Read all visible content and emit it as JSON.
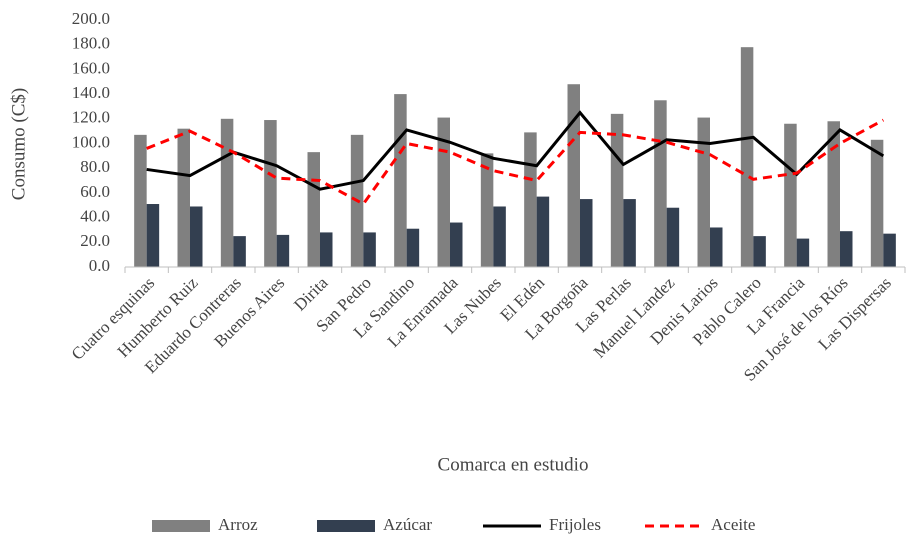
{
  "chart_data": {
    "type": "bar_line",
    "y_axis_label": "Consumo (C$)",
    "x_axis_label": "Comarca en estudio",
    "categories": [
      "Cuatro esquinas",
      "Humberto Ruiz",
      "Eduardo Contreras",
      "Buenos Aires",
      "Dirita",
      "San Pedro",
      "La Sandino",
      "La Enramada",
      "Las Nubes",
      "El Edén",
      "La Borgoña",
      "Las Perlas",
      "Manuel Landez",
      "Denis Larios",
      "Pablo Calero",
      "La Francia",
      "San José de los Ríos",
      "Las Dispersas"
    ],
    "series": [
      {
        "name": "Arroz",
        "kind": "bar",
        "color": "#808080",
        "values": [
          107,
          112,
          120,
          119,
          93,
          107,
          140,
          121,
          92,
          109,
          148,
          124,
          135,
          121,
          178,
          116,
          118,
          103
        ]
      },
      {
        "name": "Azúcar",
        "kind": "bar",
        "color": "#333f50",
        "values": [
          51,
          49,
          25,
          26,
          28,
          28,
          31,
          36,
          49,
          57,
          55,
          55,
          48,
          32,
          25,
          23,
          29,
          27
        ]
      },
      {
        "name": "Frijoles",
        "kind": "line",
        "color": "#000000",
        "dashed": false,
        "values": [
          79,
          74,
          93,
          82,
          63,
          70,
          111,
          101,
          88,
          82,
          125,
          83,
          103,
          100,
          105,
          75,
          111,
          90
        ]
      },
      {
        "name": "Aceite",
        "kind": "line",
        "color": "#ff0000",
        "dashed": true,
        "values": [
          96,
          110,
          93,
          72,
          70,
          51,
          100,
          93,
          78,
          70,
          109,
          107,
          101,
          91,
          71,
          76,
          100,
          119
        ]
      }
    ],
    "ylim": [
      0,
      200
    ],
    "yticks": [
      {
        "value": 0,
        "label": "0.0"
      },
      {
        "value": 20,
        "label": "20.0"
      },
      {
        "value": 40,
        "label": "40.0"
      },
      {
        "value": 60,
        "label": "60.0"
      },
      {
        "value": 80,
        "label": "80.0"
      },
      {
        "value": 100,
        "label": "100.0"
      },
      {
        "value": 120,
        "label": "120.0"
      },
      {
        "value": 140,
        "label": "140.0"
      },
      {
        "value": 160,
        "label": "160.0"
      },
      {
        "value": 180,
        "label": "180.0"
      },
      {
        "value": 200,
        "label": "200.0"
      }
    ],
    "grid": false
  }
}
